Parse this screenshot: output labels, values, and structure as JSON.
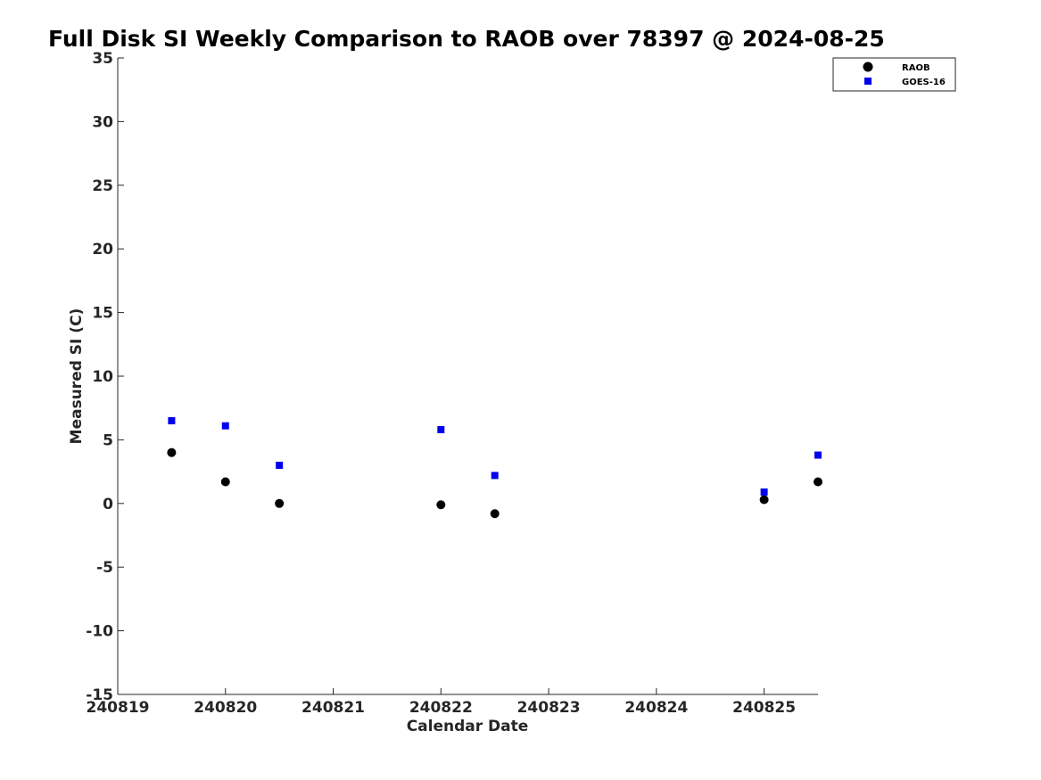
{
  "chart_data": {
    "type": "scatter",
    "title": "Full Disk SI Weekly Comparison to RAOB over 78397 @ 2024-08-25",
    "xlabel": "Calendar Date",
    "ylabel": "Measured SI (C)",
    "xlim": [
      "2024-08-19",
      "2024-08-25 12:00"
    ],
    "ylim": [
      -15,
      35
    ],
    "x_ticks": [
      "240819",
      "240820",
      "240821",
      "240822",
      "240823",
      "240824",
      "240825"
    ],
    "y_ticks": [
      "35",
      "30",
      "25",
      "20",
      "15",
      "10",
      "5",
      "0",
      "-5",
      "-10",
      "-15"
    ],
    "grid": false,
    "legend_position": "top-right",
    "series": [
      {
        "name": "RAOB",
        "marker": "circle",
        "color": "#000000",
        "points": [
          {
            "x": "2024-08-19 12:00",
            "y": 4.0
          },
          {
            "x": "2024-08-20 00:00",
            "y": 1.7
          },
          {
            "x": "2024-08-20 12:00",
            "y": 0.0
          },
          {
            "x": "2024-08-22 00:00",
            "y": -0.1
          },
          {
            "x": "2024-08-22 12:00",
            "y": -0.8
          },
          {
            "x": "2024-08-25 00:00",
            "y": 0.3
          },
          {
            "x": "2024-08-25 12:00",
            "y": 1.7
          }
        ]
      },
      {
        "name": "GOES-16",
        "marker": "square",
        "color": "#0000ee",
        "points": [
          {
            "x": "2024-08-19 12:00",
            "y": 6.5
          },
          {
            "x": "2024-08-20 00:00",
            "y": 6.1
          },
          {
            "x": "2024-08-20 12:00",
            "y": 3.0
          },
          {
            "x": "2024-08-22 00:00",
            "y": 5.8
          },
          {
            "x": "2024-08-22 12:00",
            "y": 2.2
          },
          {
            "x": "2024-08-25 00:00",
            "y": 0.9
          },
          {
            "x": "2024-08-25 12:00",
            "y": 3.8
          }
        ]
      }
    ]
  }
}
